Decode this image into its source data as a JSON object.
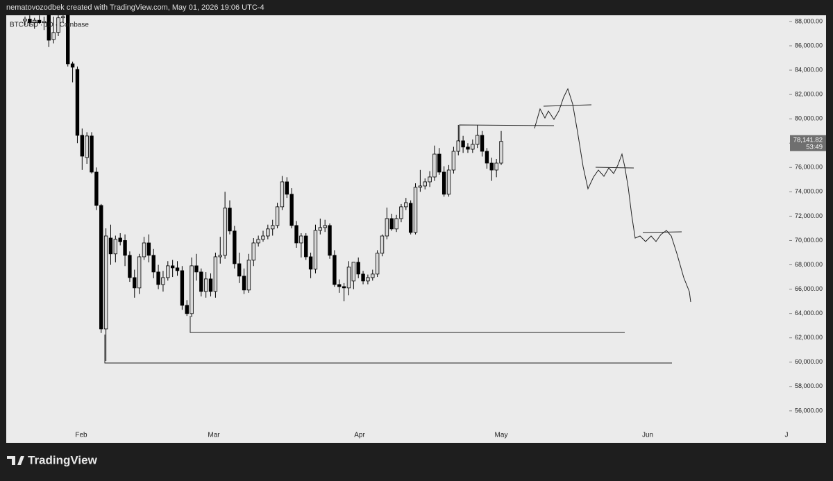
{
  "header": {
    "text": "nematovozodbek created with TradingView.com, May 01, 2026 19:06 UTC-4"
  },
  "footer": {
    "logo": "TradingView"
  },
  "chart_data": {
    "type": "candlestick",
    "symbol": "BTCUSD · 1D · Coinbase",
    "up_color": "#d9d9d9",
    "down_color": "#000000",
    "wick_color": "#000000",
    "ylim": [
      53370,
      88510
    ],
    "yticks": [
      {
        "value": 56000,
        "label": "56,000.00"
      },
      {
        "value": 58000,
        "label": "58,000.00"
      },
      {
        "value": 60000,
        "label": "60,000.00"
      },
      {
        "value": 62000,
        "label": "62,000.00"
      },
      {
        "value": 64000,
        "label": "64,000.00"
      },
      {
        "value": 66000,
        "label": "66,000.00"
      },
      {
        "value": 68000,
        "label": "68,000.00"
      },
      {
        "value": 70000,
        "label": "70,000.00"
      },
      {
        "value": 72000,
        "label": "72,000.00"
      },
      {
        "value": 74000,
        "label": "74,000.00"
      },
      {
        "value": 76000,
        "label": "76,000.00"
      },
      {
        "value": 78000,
        "label": "78,000.00"
      },
      {
        "value": 80000,
        "label": "80,000.00"
      },
      {
        "value": 82000,
        "label": "82,000.00"
      },
      {
        "value": 84000,
        "label": "84,000.00"
      },
      {
        "value": 86000,
        "label": "86,000.00"
      },
      {
        "value": 88000,
        "label": "88,000.00"
      }
    ],
    "x_labels": [
      "Feb",
      "Mar",
      "Apr",
      "May",
      "Jun",
      "J"
    ],
    "last_price": {
      "value": 78141.82,
      "label": "78,141.82",
      "countdown": "53:49"
    },
    "open": [
      88050,
      88200,
      87900,
      88100,
      87900,
      88510,
      86520,
      87100,
      88300,
      88510,
      84520,
      84060,
      78640,
      76820,
      78590,
      75620,
      72880,
      62730,
      70200,
      68900,
      70200,
      70000,
      68780,
      66950,
      66100,
      68660,
      69800,
      68780,
      67410,
      66380,
      66950,
      67920,
      67750,
      67520,
      64670,
      63990,
      67920,
      67410,
      65810,
      66840,
      65810,
      68660,
      68780,
      72660,
      70780,
      68090,
      67070,
      65930,
      68380,
      69800,
      70090,
      70370,
      70950,
      71230,
      72770,
      74820,
      73800,
      71230,
      69800,
      70370,
      68660,
      67640,
      70830,
      71060,
      71230,
      68780,
      66380,
      66210,
      66100,
      66670,
      68210,
      67240,
      66670,
      66950,
      67240,
      68950,
      70370,
      71800,
      70950,
      71800,
      72770,
      73060,
      70660,
      74370,
      74480,
      74820,
      75220,
      77100,
      75620,
      73800,
      75790,
      77330,
      78190,
      77680,
      77500,
      77900,
      78640,
      77330,
      76360,
      75790,
      76360
    ],
    "high": [
      88400,
      88500,
      88300,
      88500,
      88400,
      88510,
      88400,
      88500,
      88510,
      88510,
      84700,
      84300,
      79200,
      78900,
      78900,
      76000,
      73000,
      71000,
      71300,
      70400,
      70600,
      70500,
      69100,
      67600,
      68900,
      70300,
      70500,
      69300,
      68000,
      67500,
      68300,
      68400,
      68300,
      67900,
      65100,
      68600,
      68900,
      67700,
      67400,
      67300,
      69000,
      70300,
      74000,
      73300,
      71200,
      69000,
      67700,
      68900,
      70200,
      70400,
      70800,
      71300,
      71700,
      73100,
      75300,
      75200,
      74300,
      71600,
      70600,
      70600,
      69000,
      71300,
      71800,
      71700,
      71400,
      69200,
      66800,
      66500,
      68300,
      68200,
      68600,
      67500,
      67200,
      67600,
      69200,
      70500,
      72700,
      72200,
      72100,
      73000,
      73500,
      73300,
      74700,
      75800,
      75100,
      75700,
      77800,
      77600,
      76100,
      76200,
      77700,
      79500,
      78600,
      78000,
      78300,
      79500,
      79000,
      77600,
      76800,
      76700,
      79000
    ],
    "low": [
      87700,
      87600,
      87400,
      87800,
      87300,
      85900,
      86200,
      86800,
      87900,
      84300,
      83000,
      78000,
      75800,
      76300,
      75500,
      72500,
      62400,
      60100,
      68000,
      68200,
      69600,
      67900,
      66600,
      65300,
      65600,
      68400,
      68200,
      66900,
      66000,
      65800,
      66700,
      67000,
      67100,
      64300,
      63800,
      63700,
      66700,
      65400,
      65300,
      65400,
      65300,
      68100,
      68500,
      70500,
      67700,
      66500,
      65600,
      65700,
      67900,
      69500,
      69900,
      70100,
      70400,
      71000,
      72500,
      73500,
      71000,
      69400,
      68600,
      68400,
      66900,
      67300,
      70500,
      70700,
      68500,
      66200,
      65700,
      65000,
      65500,
      66000,
      66900,
      66400,
      66400,
      66700,
      67000,
      68700,
      70100,
      70800,
      70700,
      71500,
      72500,
      70500,
      70500,
      74000,
      74200,
      74400,
      74900,
      75400,
      73600,
      73600,
      75500,
      77000,
      77200,
      77200,
      77200,
      77600,
      76900,
      75900,
      74900,
      75200,
      76200
    ],
    "close": [
      88200,
      87900,
      88100,
      87900,
      88000,
      86460,
      87090,
      88300,
      88400,
      84520,
      84240,
      78640,
      76930,
      78590,
      75620,
      72880,
      62730,
      70370,
      68900,
      70100,
      69900,
      68780,
      66950,
      66100,
      68660,
      69800,
      68780,
      67410,
      66380,
      66950,
      67920,
      67750,
      67520,
      64670,
      63990,
      67920,
      67410,
      65810,
      66840,
      65810,
      68660,
      68780,
      72660,
      70780,
      68090,
      67070,
      65930,
      68380,
      69800,
      70090,
      70370,
      70950,
      71230,
      72770,
      74820,
      73800,
      71230,
      69800,
      70370,
      68660,
      67640,
      70830,
      71060,
      71230,
      68780,
      66380,
      66210,
      66100,
      67810,
      68210,
      67240,
      66670,
      66950,
      67240,
      68950,
      70370,
      71800,
      70950,
      71800,
      72770,
      73110,
      70660,
      74370,
      74480,
      74820,
      75220,
      77100,
      75620,
      73800,
      75790,
      77330,
      78190,
      77680,
      77500,
      77900,
      78640,
      77330,
      76360,
      75790,
      76360,
      78141.82
    ]
  }
}
